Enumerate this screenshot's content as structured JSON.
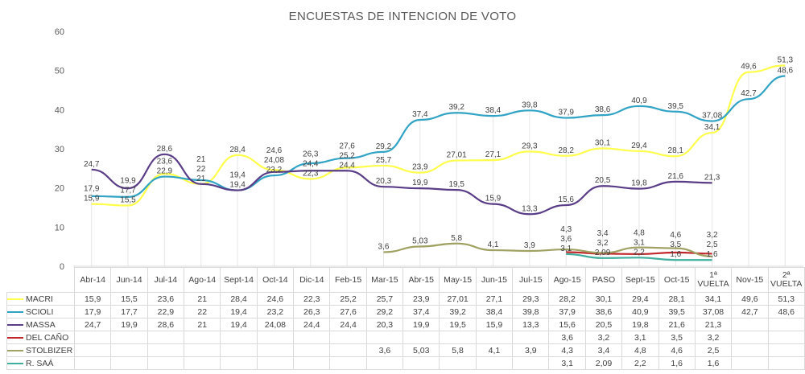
{
  "chart_data": {
    "type": "line",
    "title": "ENCUESTAS DE INTENCION DE VOTO",
    "categories": [
      "Abr-14",
      "Jun-14",
      "Jul-14",
      "Ago-14",
      "Sept-14",
      "Oct-14",
      "Dic-14",
      "Feb-15",
      "Mar-15",
      "Abr-15",
      "May-15",
      "Jun-15",
      "Jul-15",
      "Ago-15",
      "PASO",
      "Sept-15",
      "Oct-15",
      "1ª VUELTA",
      "Nov-15",
      "2ª VUELTA"
    ],
    "ylim": [
      0,
      60
    ],
    "yticks": [
      "0",
      "10",
      "20",
      "30",
      "40",
      "50",
      "60"
    ],
    "grid": false,
    "legend": "bottom table",
    "series": [
      {
        "name": "MACRI",
        "color": "#ffff4d",
        "values": [
          "15,9",
          "15,5",
          "23,6",
          "21",
          "28,4",
          "24,6",
          "22,3",
          "25,2",
          "25,7",
          "23,9",
          "27,01",
          "27,1",
          "29,3",
          "28,2",
          "30,1",
          "29,4",
          "28,1",
          "34,1",
          "49,6",
          "51,3"
        ]
      },
      {
        "name": "SCIOLI",
        "color": "#31a3c4",
        "values": [
          "17,9",
          "17,7",
          "22,9",
          "22",
          "19,4",
          "23,2",
          "26,3",
          "27,6",
          "29,2",
          "37,4",
          "39,2",
          "38,4",
          "39,8",
          "37,9",
          "38,6",
          "40,9",
          "39,5",
          "37,08",
          "42,7",
          "48,6"
        ]
      },
      {
        "name": "MASSA",
        "color": "#5a3d87",
        "values": [
          "24,7",
          "19,9",
          "28,6",
          "21",
          "19,4",
          "24,08",
          "24,4",
          "24,4",
          "20,3",
          "19,9",
          "19,5",
          "15,9",
          "13,3",
          "15,6",
          "20,5",
          "19,8",
          "21,6",
          "21,3",
          "",
          ""
        ]
      },
      {
        "name": "DEL CAÑO",
        "color": "#c0262a",
        "values": [
          "",
          "",
          "",
          "",
          "",
          "",
          "",
          "",
          "",
          "",
          "",
          "",
          "",
          "3,6",
          "3,2",
          "3,1",
          "3,5",
          "3,2",
          "",
          ""
        ]
      },
      {
        "name": "STOLBIZER",
        "color": "#a0a264",
        "values": [
          "",
          "",
          "",
          "",
          "",
          "",
          "",
          "",
          "3,6",
          "5,03",
          "5,8",
          "4,1",
          "3,9",
          "4,3",
          "3,4",
          "4,8",
          "4,6",
          "2,5",
          "",
          ""
        ]
      },
      {
        "name": "R. SAÁ",
        "color": "#3fae9d",
        "values": [
          "",
          "",
          "",
          "",
          "",
          "",
          "",
          "",
          "",
          "",
          "",
          "",
          "",
          "3,1",
          "2,09",
          "2,2",
          "1,6",
          "1,6",
          "",
          ""
        ]
      }
    ]
  }
}
